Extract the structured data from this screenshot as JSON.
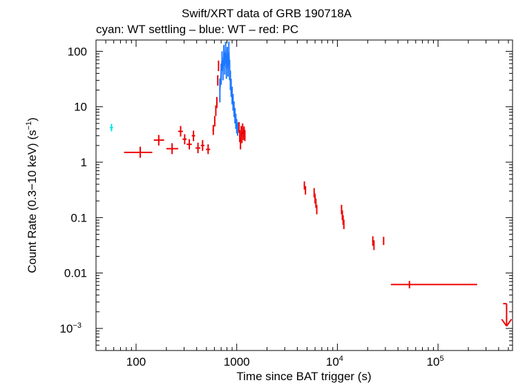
{
  "chart_data": {
    "type": "scatter",
    "title": "Swift/XRT data of GRB 190718A",
    "subtitle": "cyan: WT settling – blue: WT – red: PC",
    "xlabel": "Time since BAT trigger (s)",
    "ylabel_main": "Count Rate (0.3−10 keV) (s",
    "ylabel_sup": "−1",
    "ylabel_close": ")",
    "xscale": "log",
    "yscale": "log",
    "xlim": [
      40,
      550000
    ],
    "ylim": [
      0.0004,
      160
    ],
    "x_ticks": [
      {
        "value": 100,
        "label": "100"
      },
      {
        "value": 1000,
        "label": "1000"
      },
      {
        "value": 10000,
        "label": "10",
        "sup": "4"
      },
      {
        "value": 100000,
        "label": "10",
        "sup": "5"
      }
    ],
    "y_ticks": [
      {
        "value": 100,
        "label": "100"
      },
      {
        "value": 10,
        "label": "10"
      },
      {
        "value": 1,
        "label": "1"
      },
      {
        "value": 0.1,
        "label": "0.1"
      },
      {
        "value": 0.01,
        "label": "0.01"
      },
      {
        "value": 0.001,
        "label": "10",
        "sup": "−3"
      }
    ],
    "series": [
      {
        "name": "WT settling",
        "color": "#00e5e5",
        "points": [
          {
            "x": 57,
            "xlo": 55,
            "xhi": 59,
            "y": 4.2,
            "ylo": 3.6,
            "yhi": 4.9
          }
        ]
      },
      {
        "name": "WT",
        "color": "#1e78ff",
        "mode": "line",
        "points": [
          {
            "x": 680,
            "y": 20,
            "ylo": 12,
            "yhi": 32
          },
          {
            "x": 700,
            "y": 40,
            "ylo": 25,
            "yhi": 60
          },
          {
            "x": 715,
            "y": 70,
            "ylo": 45,
            "yhi": 100
          },
          {
            "x": 730,
            "y": 45,
            "ylo": 30,
            "yhi": 70
          },
          {
            "x": 745,
            "y": 90,
            "ylo": 55,
            "yhi": 130
          },
          {
            "x": 760,
            "y": 60,
            "ylo": 38,
            "yhi": 95
          },
          {
            "x": 775,
            "y": 110,
            "ylo": 70,
            "yhi": 150
          },
          {
            "x": 790,
            "y": 50,
            "ylo": 32,
            "yhi": 80
          },
          {
            "x": 805,
            "y": 80,
            "ylo": 50,
            "yhi": 120
          },
          {
            "x": 820,
            "y": 55,
            "ylo": 35,
            "yhi": 85
          },
          {
            "x": 835,
            "y": 100,
            "ylo": 65,
            "yhi": 150
          },
          {
            "x": 850,
            "y": 45,
            "ylo": 30,
            "yhi": 70
          },
          {
            "x": 865,
            "y": 30,
            "ylo": 20,
            "yhi": 45
          },
          {
            "x": 880,
            "y": 22,
            "ylo": 15,
            "yhi": 32
          },
          {
            "x": 900,
            "y": 16,
            "ylo": 11,
            "yhi": 23
          },
          {
            "x": 920,
            "y": 12,
            "ylo": 8.5,
            "yhi": 17
          },
          {
            "x": 940,
            "y": 9,
            "ylo": 6.5,
            "yhi": 12.5
          },
          {
            "x": 960,
            "y": 7,
            "ylo": 5,
            "yhi": 9.5
          },
          {
            "x": 980,
            "y": 5.5,
            "ylo": 4,
            "yhi": 7.5
          },
          {
            "x": 1000,
            "y": 4.5,
            "ylo": 3.3,
            "yhi": 6
          },
          {
            "x": 1020,
            "y": 4,
            "ylo": 3,
            "yhi": 5.2
          }
        ]
      },
      {
        "name": "PC",
        "color": "#ee0000",
        "points": [
          {
            "x": 110,
            "xlo": 76,
            "xhi": 145,
            "y": 1.5,
            "ylo": 1.2,
            "yhi": 1.9
          },
          {
            "x": 168,
            "xlo": 150,
            "xhi": 190,
            "y": 2.5,
            "ylo": 2.0,
            "yhi": 3.1
          },
          {
            "x": 228,
            "xlo": 200,
            "xhi": 262,
            "y": 1.75,
            "ylo": 1.4,
            "yhi": 2.2
          },
          {
            "x": 277,
            "xlo": 262,
            "xhi": 292,
            "y": 3.6,
            "ylo": 2.9,
            "yhi": 4.5
          },
          {
            "x": 304,
            "xlo": 290,
            "xhi": 318,
            "y": 2.6,
            "ylo": 2.1,
            "yhi": 3.2
          },
          {
            "x": 338,
            "xlo": 318,
            "xhi": 358,
            "y": 2.1,
            "ylo": 1.7,
            "yhi": 2.6
          },
          {
            "x": 372,
            "xlo": 358,
            "xhi": 386,
            "y": 3.0,
            "ylo": 2.4,
            "yhi": 3.7
          },
          {
            "x": 412,
            "xlo": 390,
            "xhi": 435,
            "y": 1.8,
            "ylo": 1.45,
            "yhi": 2.25
          },
          {
            "x": 458,
            "xlo": 440,
            "xhi": 478,
            "y": 2.0,
            "ylo": 1.6,
            "yhi": 2.5
          },
          {
            "x": 520,
            "xlo": 495,
            "xhi": 545,
            "y": 1.7,
            "ylo": 1.4,
            "yhi": 2.1
          },
          {
            "x": 585,
            "xlo": 575,
            "xhi": 595,
            "y": 3.8,
            "ylo": 3.1,
            "yhi": 4.7
          },
          {
            "x": 605,
            "xlo": 598,
            "xhi": 612,
            "y": 5.5,
            "ylo": 4.4,
            "yhi": 6.8
          },
          {
            "x": 620,
            "xlo": 614,
            "xhi": 626,
            "y": 8.5,
            "ylo": 6.8,
            "yhi": 10.6
          },
          {
            "x": 635,
            "xlo": 629,
            "xhi": 641,
            "y": 12,
            "ylo": 9.5,
            "yhi": 15
          },
          {
            "x": 648,
            "xlo": 642,
            "xhi": 654,
            "y": 30,
            "ylo": 24,
            "yhi": 37
          },
          {
            "x": 660,
            "xlo": 655,
            "xhi": 665,
            "y": 55,
            "ylo": 44,
            "yhi": 68
          },
          {
            "x": 1055,
            "xlo": 1048,
            "xhi": 1062,
            "y": 4.3,
            "ylo": 3.4,
            "yhi": 5.3
          },
          {
            "x": 1072,
            "xlo": 1065,
            "xhi": 1079,
            "y": 3.0,
            "ylo": 2.3,
            "yhi": 3.8
          },
          {
            "x": 1090,
            "xlo": 1083,
            "xhi": 1097,
            "y": 2.2,
            "ylo": 1.7,
            "yhi": 2.8
          },
          {
            "x": 1108,
            "xlo": 1101,
            "xhi": 1115,
            "y": 3.6,
            "ylo": 2.8,
            "yhi": 4.5
          },
          {
            "x": 1126,
            "xlo": 1119,
            "xhi": 1133,
            "y": 2.8,
            "ylo": 2.2,
            "yhi": 3.5
          },
          {
            "x": 1145,
            "xlo": 1138,
            "xhi": 1152,
            "y": 4.0,
            "ylo": 3.2,
            "yhi": 5.0
          },
          {
            "x": 1165,
            "xlo": 1158,
            "xhi": 1172,
            "y": 3.2,
            "ylo": 2.5,
            "yhi": 4.0
          },
          {
            "x": 1185,
            "xlo": 1178,
            "xhi": 1192,
            "y": 3.5,
            "ylo": 2.8,
            "yhi": 4.4
          },
          {
            "x": 1205,
            "xlo": 1198,
            "xhi": 1212,
            "y": 3.0,
            "ylo": 2.4,
            "yhi": 3.8
          },
          {
            "x": 4700,
            "xlo": 4640,
            "xhi": 4760,
            "y": 0.38,
            "ylo": 0.32,
            "yhi": 0.45
          },
          {
            "x": 4820,
            "xlo": 4760,
            "xhi": 4880,
            "y": 0.31,
            "ylo": 0.26,
            "yhi": 0.37
          },
          {
            "x": 5880,
            "xlo": 5820,
            "xhi": 5940,
            "y": 0.28,
            "ylo": 0.23,
            "yhi": 0.34
          },
          {
            "x": 6000,
            "xlo": 5940,
            "xhi": 6060,
            "y": 0.22,
            "ylo": 0.18,
            "yhi": 0.27
          },
          {
            "x": 6120,
            "xlo": 6060,
            "xhi": 6180,
            "y": 0.18,
            "ylo": 0.15,
            "yhi": 0.22
          },
          {
            "x": 6240,
            "xlo": 6180,
            "xhi": 6300,
            "y": 0.14,
            "ylo": 0.115,
            "yhi": 0.17
          },
          {
            "x": 11000,
            "xlo": 10900,
            "xhi": 11100,
            "y": 0.14,
            "ylo": 0.115,
            "yhi": 0.17
          },
          {
            "x": 11200,
            "xlo": 11100,
            "xhi": 11300,
            "y": 0.11,
            "ylo": 0.09,
            "yhi": 0.135
          },
          {
            "x": 11400,
            "xlo": 11300,
            "xhi": 11500,
            "y": 0.09,
            "ylo": 0.074,
            "yhi": 0.11
          },
          {
            "x": 11600,
            "xlo": 11500,
            "xhi": 11700,
            "y": 0.075,
            "ylo": 0.062,
            "yhi": 0.092
          },
          {
            "x": 22500,
            "xlo": 22200,
            "xhi": 22800,
            "y": 0.038,
            "ylo": 0.031,
            "yhi": 0.046
          },
          {
            "x": 23100,
            "xlo": 22800,
            "xhi": 23400,
            "y": 0.032,
            "ylo": 0.026,
            "yhi": 0.039
          },
          {
            "x": 28800,
            "xlo": 28500,
            "xhi": 29100,
            "y": 0.038,
            "ylo": 0.032,
            "yhi": 0.045
          },
          {
            "x": 52000,
            "xlo": 34000,
            "xhi": 245000,
            "y": 0.0062,
            "ylo": 0.0053,
            "yhi": 0.0072
          }
        ],
        "upper_limits": [
          {
            "x": 480000,
            "y": 0.0028,
            "ylo": 0.0011
          }
        ]
      }
    ]
  }
}
